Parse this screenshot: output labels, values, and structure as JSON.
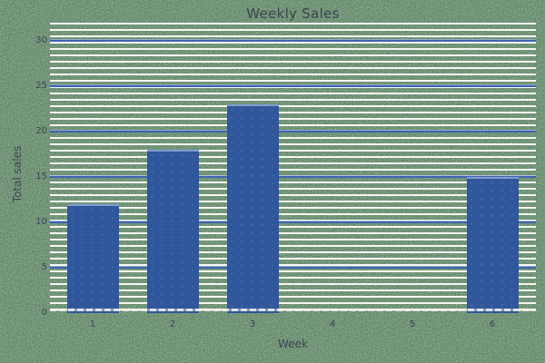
{
  "chart_data": {
    "type": "bar",
    "title": "Weekly Sales",
    "xlabel": "Week",
    "ylabel": "Total sales",
    "categories": [
      "1",
      "2",
      "3",
      "4",
      "5",
      "6"
    ],
    "values": [
      12,
      18,
      23,
      0,
      0,
      15
    ],
    "yticks": [
      0,
      5,
      10,
      15,
      20,
      25,
      30
    ],
    "ylim": [
      0,
      30
    ],
    "grid": true,
    "legend_position": "none",
    "series_name": "Weekly Sales"
  },
  "colors": {
    "bar_fill": "#30569c",
    "bar_edge": "#7e9cd0",
    "gridline_blue": "#3e63b2",
    "figure_green": "#2c4530",
    "stripe_white": "#fcfcf8",
    "axis_text": "#3c4454",
    "baseline_white": "#f2f2ec"
  }
}
